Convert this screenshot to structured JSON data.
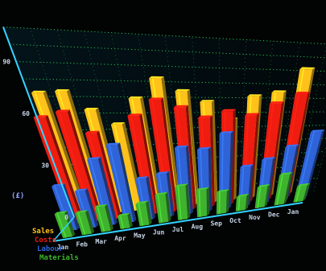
{
  "chart_data": {
    "type": "bar",
    "title": "",
    "xlabel": "",
    "ylabel": "(£)",
    "ylim": [
      0,
      110
    ],
    "yticks": [
      0,
      30,
      60,
      90
    ],
    "grid": true,
    "legend_position": "bottom-left",
    "categories": [
      "Jan",
      "Feb",
      "Mar",
      "Apr",
      "May",
      "Jun",
      "Jul",
      "Aug",
      "Sep",
      "Oct",
      "Nov",
      "Dec",
      "Jan"
    ],
    "series": [
      {
        "name": "Sales",
        "color": "#ffc21a",
        "values": [
          72,
          73,
          62,
          53,
          69,
          82,
          74,
          67,
          55,
          71,
          74,
          91,
          0
        ]
      },
      {
        "name": "Costs",
        "color": "#f01c10",
        "values": [
          62,
          65,
          52,
          0,
          62,
          72,
          67,
          60,
          64,
          61,
          69,
          76,
          0
        ]
      },
      {
        "name": "Labour",
        "color": "#2f63d8",
        "values": [
          26,
          22,
          40,
          48,
          26,
          28,
          44,
          42,
          52,
          28,
          32,
          40,
          50
        ]
      },
      {
        "name": "Materials",
        "color": "#3fb32e",
        "values": [
          14,
          13,
          15,
          8,
          14,
          18,
          22,
          18,
          15,
          10,
          15,
          22,
          12
        ]
      }
    ]
  }
}
